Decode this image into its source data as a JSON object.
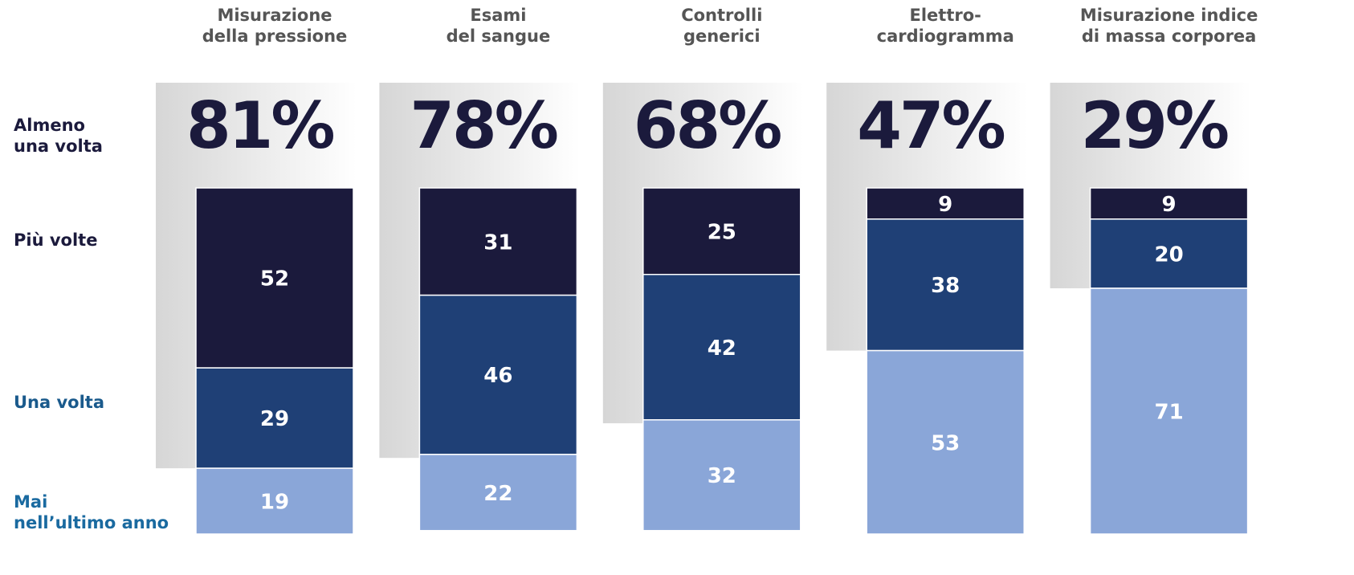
{
  "chart_data": {
    "type": "stacked-bar",
    "categories": [
      [
        "Misurazione",
        "della pressione"
      ],
      [
        "Esami",
        "del sangue"
      ],
      [
        "Controlli",
        "generici"
      ],
      [
        "Elettro-",
        "cardiogramma"
      ],
      [
        "Misurazione indice",
        "di massa corporea"
      ]
    ],
    "series": [
      {
        "name": [
          "Più volte"
        ],
        "color": "#1b1a3c",
        "label_color": "#1b1a3c",
        "values": [
          52,
          31,
          25,
          9,
          9
        ]
      },
      {
        "name": [
          "Una volta"
        ],
        "color": "#1f4076",
        "label_color": "#1a5a8c",
        "values": [
          29,
          46,
          42,
          38,
          20
        ]
      },
      {
        "name": [
          "Mai",
          "nell’ultimo anno"
        ],
        "color": "#8aa6d8",
        "label_color": "#1a6aa0",
        "values": [
          19,
          22,
          32,
          53,
          71
        ]
      }
    ],
    "totals": {
      "name": [
        "Almeno",
        "una volta"
      ],
      "color": "#1b1a3c",
      "values": [
        81,
        78,
        68,
        47,
        29
      ],
      "value_labels": [
        "81%",
        "78%",
        "68%",
        "47%",
        "29%"
      ]
    },
    "ylim": [
      0,
      100
    ]
  }
}
